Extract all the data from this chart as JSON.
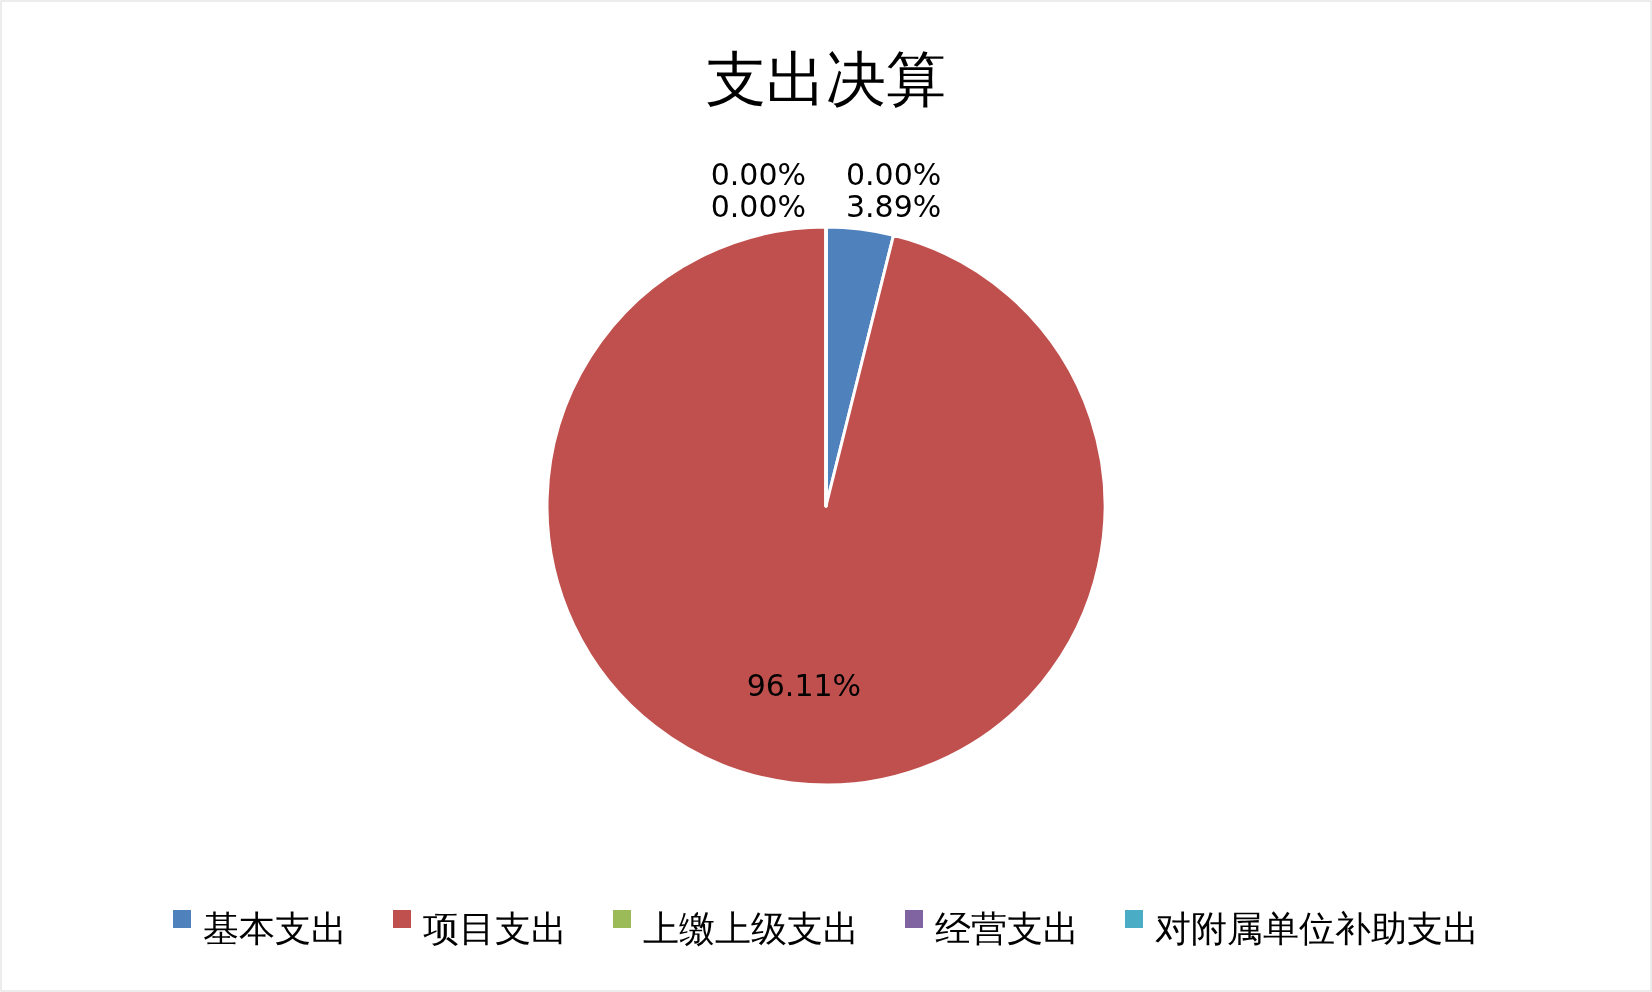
{
  "chart_data": {
    "type": "pie",
    "title": "支出决算",
    "categories": [
      "基本支出",
      "项目支出",
      "上缴上级支出",
      "经营支出",
      "对附属单位补助支出"
    ],
    "values": [
      3.89,
      96.11,
      0.0,
      0.0,
      0.0
    ],
    "colors": [
      "#4f81bd",
      "#c0504d",
      "#9bbb59",
      "#8064a2",
      "#4bacc6"
    ],
    "value_labels": [
      "3.89%",
      "96.11%",
      "0.00%",
      "0.00%",
      "0.00%"
    ],
    "legend": "bottom"
  }
}
